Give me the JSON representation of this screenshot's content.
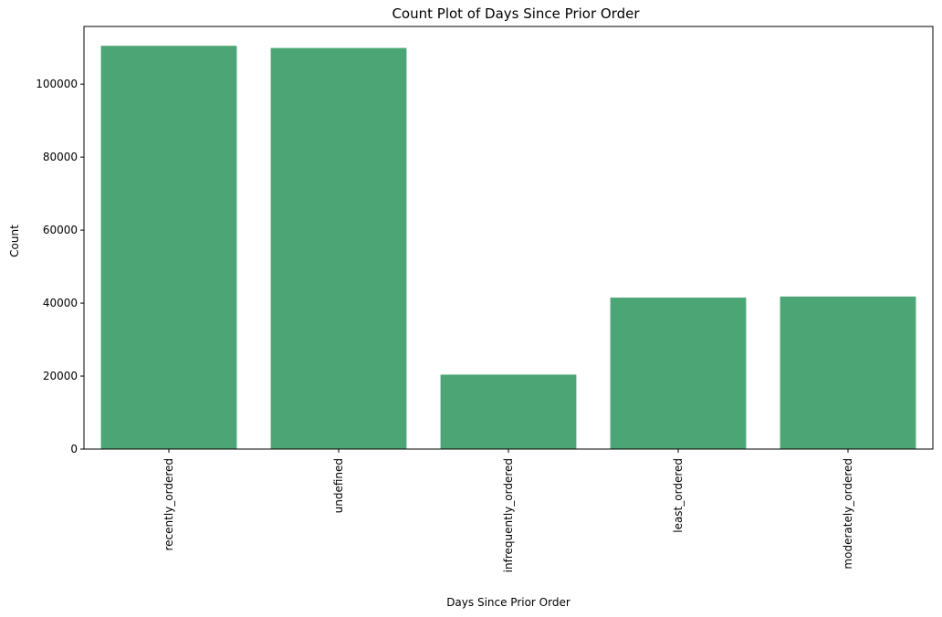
{
  "chart_data": {
    "type": "bar",
    "title": "Count Plot of Days Since Prior Order",
    "xlabel": "Days Since Prior Order",
    "ylabel": "Count",
    "categories": [
      "recently_ordered",
      "undefined",
      "infrequently_ordered",
      "least_ordered",
      "moderately_ordered"
    ],
    "values": [
      110500,
      109900,
      20400,
      41500,
      41800
    ],
    "ylim": [
      0,
      115800
    ],
    "yticks": [
      0,
      20000,
      40000,
      60000,
      80000,
      100000
    ],
    "bar_color": "#4ba574",
    "grid": false,
    "legend": "none"
  }
}
